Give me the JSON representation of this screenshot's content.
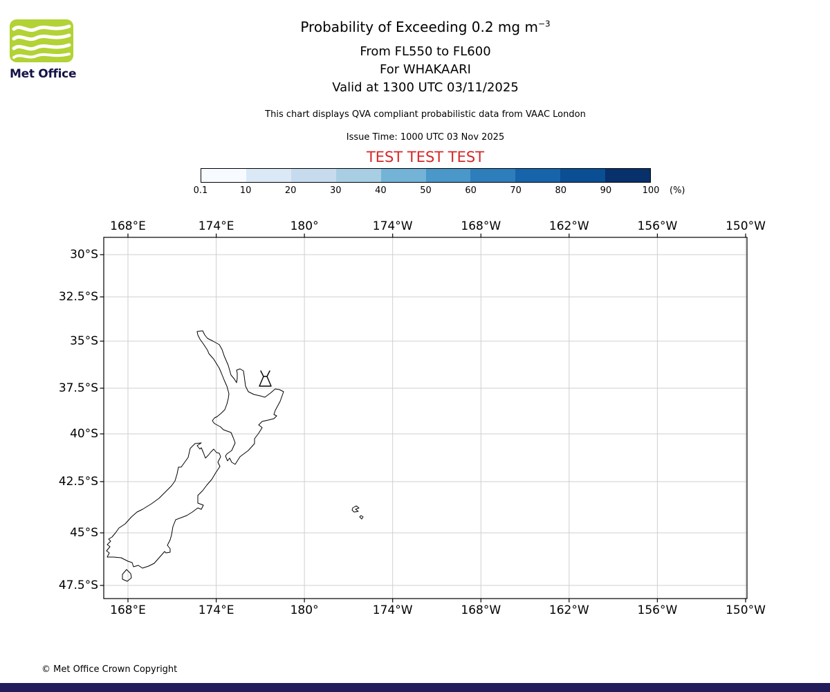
{
  "page": {
    "footer_bar_color": "#221d5a"
  },
  "logo": {
    "label": "Met Office",
    "green": "#b2d235"
  },
  "header": {
    "title": "Probability of Exceeding 0.2 mg m",
    "title_superscript": "−3",
    "line2": "From FL550 to FL600",
    "line3": "For WHAKAARI",
    "line4": "Valid at 1300 UTC 03/11/2025",
    "note": "This chart displays QVA compliant probabilistic data from VAAC London",
    "issue_time": "Issue Time: 1000 UTC 03 Nov 2025",
    "test_banner": "TEST TEST TEST",
    "test_color": "#d62728"
  },
  "colorbar": {
    "tick_labels": [
      "0.1",
      "10",
      "20",
      "30",
      "40",
      "50",
      "60",
      "70",
      "80",
      "90",
      "100"
    ],
    "unit_label": "(%)",
    "segment_colors": [
      "#f7fbff",
      "#dbe9f6",
      "#c7dbef",
      "#a8cee4",
      "#73b3d8",
      "#4a97c9",
      "#2e7ebc",
      "#1864aa",
      "#0a4e94",
      "#08306b"
    ]
  },
  "map": {
    "x_tick_labels": [
      "168°E",
      "174°E",
      "180°",
      "174°W",
      "168°W",
      "162°W",
      "156°W",
      "150°W"
    ],
    "y_tick_labels": [
      "30°S",
      "32.5°S",
      "35°S",
      "37.5°S",
      "40°S",
      "42.5°S",
      "45°S",
      "47.5°S"
    ]
  },
  "footer": {
    "copyright": "© Met Office Crown Copyright"
  }
}
